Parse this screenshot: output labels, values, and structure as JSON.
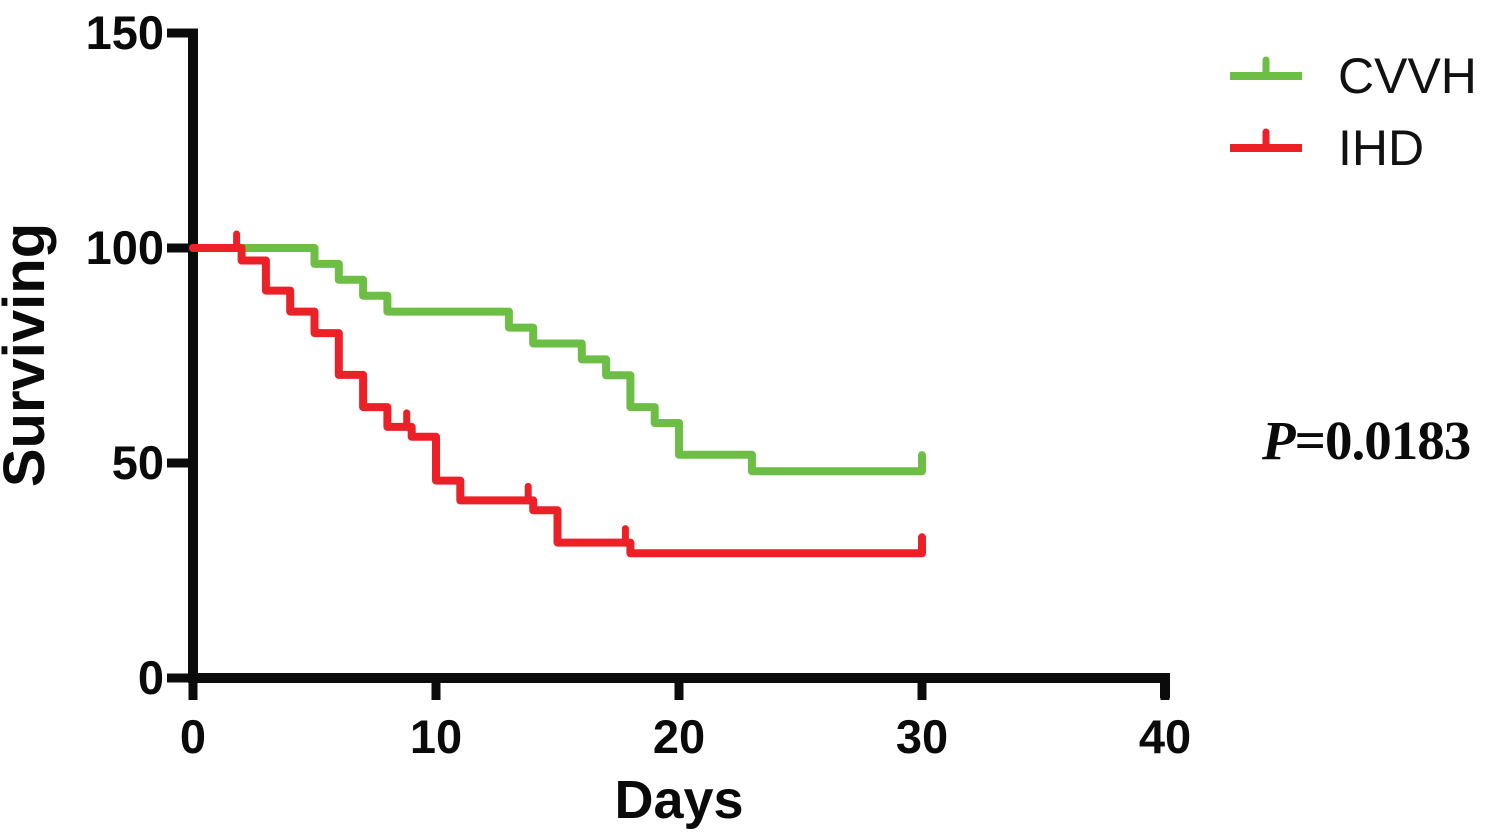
{
  "figure": {
    "background": "#ffffff"
  },
  "chart_data": {
    "type": "line",
    "subtype": "kaplan-meier-step-curve",
    "title": "",
    "xlabel": "Days",
    "ylabel": "Surviving",
    "xlim": [
      0,
      40
    ],
    "ylim": [
      0,
      150
    ],
    "xticks": [
      0,
      10,
      20,
      30,
      40
    ],
    "yticks": [
      0,
      50,
      100,
      150
    ],
    "grid": false,
    "legend_position": "top-right",
    "series": [
      {
        "name": "CVVH",
        "color": "#6CBE45",
        "steps": [
          [
            0,
            100
          ],
          [
            5,
            96.3
          ],
          [
            6,
            92.6
          ],
          [
            7,
            88.9
          ],
          [
            8,
            85.2
          ],
          [
            13,
            81.5
          ],
          [
            14,
            77.8
          ],
          [
            16,
            74.1
          ],
          [
            17,
            70.4
          ],
          [
            18,
            63.0
          ],
          [
            19,
            59.3
          ],
          [
            20,
            51.9
          ],
          [
            23,
            48.1
          ]
        ],
        "end_day": 30,
        "end_censor_tick": true,
        "censor_marks": []
      },
      {
        "name": "IHD",
        "color": "#EC2127",
        "steps": [
          [
            0,
            100
          ],
          [
            2,
            97.1
          ],
          [
            3,
            90.1
          ],
          [
            4,
            85.2
          ],
          [
            5,
            80.2
          ],
          [
            6,
            70.5
          ],
          [
            7,
            63.0
          ],
          [
            8,
            58.4
          ],
          [
            9,
            56.1
          ],
          [
            10,
            45.9
          ],
          [
            11,
            41.3
          ],
          [
            14,
            39.0
          ],
          [
            15,
            31.5
          ],
          [
            18,
            29.0
          ]
        ],
        "end_day": 30,
        "end_censor_tick": true,
        "censor_marks": [
          [
            2,
            100
          ],
          [
            9,
            58.4
          ],
          [
            14,
            41.3
          ],
          [
            18,
            31.5
          ]
        ]
      }
    ],
    "annotation": {
      "p_prefix": "P",
      "p_value": "=0.0183"
    }
  },
  "axis_color": "#0b0b0b"
}
